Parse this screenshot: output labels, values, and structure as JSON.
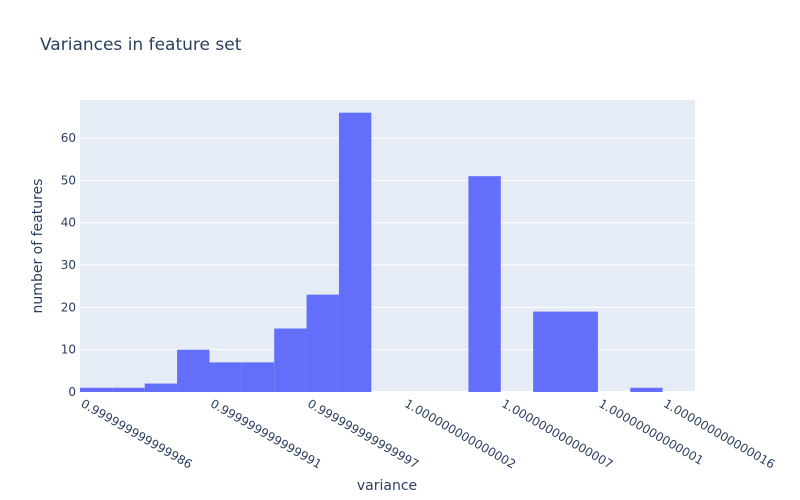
{
  "chart_data": {
    "type": "bar",
    "title": "Variances in feature set",
    "xlabel": "variance",
    "ylabel": "number of features",
    "ylim": [
      0,
      69
    ],
    "y_ticks": [
      0,
      10,
      20,
      30,
      40,
      50,
      60
    ],
    "x_tick_labels": [
      "0.999999999999986",
      "0.999999999999991",
      "0.999999999999997",
      "1.000000000000002",
      "1.000000000000007",
      "1.00000000000001",
      "1.000000000000016"
    ],
    "bins": 19,
    "values": [
      1,
      1,
      2,
      10,
      7,
      7,
      15,
      23,
      66,
      0,
      0,
      0,
      51,
      0,
      19,
      19,
      0,
      1,
      0
    ],
    "grid": true,
    "legend": "none",
    "colors": {
      "bar": "#636efa",
      "plot_background": "#e5ecf6",
      "grid": "#ffffff",
      "text": "#2a3f5f"
    }
  }
}
